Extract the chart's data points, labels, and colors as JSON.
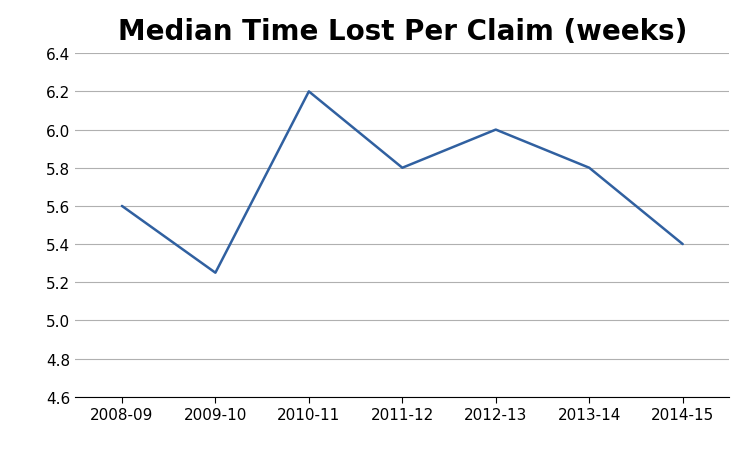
{
  "title": "Median Time Lost Per Claim (weeks)",
  "categories": [
    "2008-09",
    "2009-10",
    "2010-11",
    "2011-12",
    "2012-13",
    "2013-14",
    "2014-15"
  ],
  "values": [
    5.6,
    5.25,
    6.2,
    5.8,
    6.0,
    5.8,
    5.4
  ],
  "line_color": "#3060A0",
  "line_width": 1.8,
  "ylim": [
    4.6,
    6.4
  ],
  "yticks": [
    4.6,
    4.8,
    5.0,
    5.2,
    5.4,
    5.6,
    5.8,
    6.0,
    6.2,
    6.4
  ],
  "background_color": "#ffffff",
  "title_fontsize": 20,
  "tick_fontsize": 11,
  "grid_color": "#b0b0b0",
  "border_color": "#000000",
  "figsize": [
    7.52,
    4.52
  ],
  "dpi": 100
}
